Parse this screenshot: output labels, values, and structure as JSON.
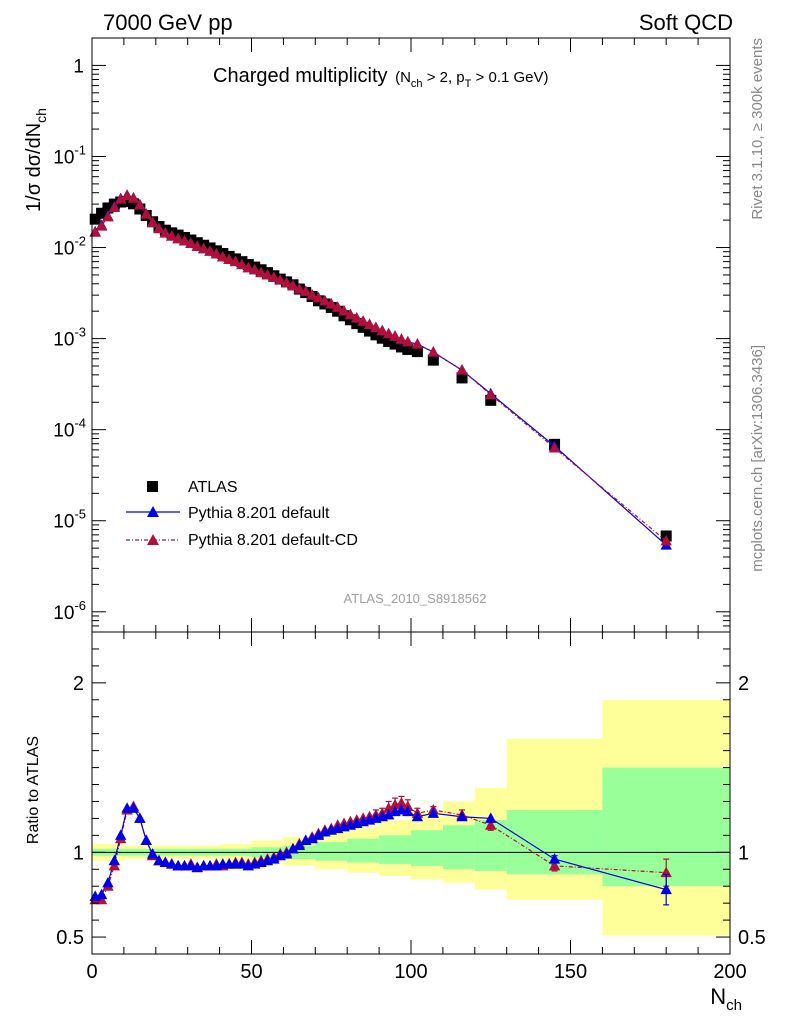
{
  "header": {
    "left": "7000 GeV pp",
    "right": "Soft QCD"
  },
  "side": {
    "rivet": "Rivet 3.1.10, ≥ 300k events",
    "mcplots": "mcplots.cern.ch [arXiv:1306.3436]"
  },
  "colors": {
    "atlas": "#000000",
    "default": "#0000e6",
    "cd": "#b0103a",
    "band_inner": "#99ff99",
    "band_outer": "#ffff99"
  },
  "chart_data": [
    {
      "type": "scatter",
      "title": "Charged multiplicity",
      "title_suffix": "(N_ch > 2, p_T > 0.1 GeV)",
      "ylabel": "1/σ dσ/dN_ch",
      "xlabel": "N_ch",
      "yscale": "log",
      "xlim": [
        0,
        200
      ],
      "ylim": [
        6e-07,
        2
      ],
      "ytick_labels": [
        "1",
        "10^-1",
        "10^-2",
        "10^-3",
        "10^-4",
        "10^-5",
        "10^-6"
      ],
      "watermark": "ATLAS_2010_S8918562",
      "legend_position": "lower-left",
      "series": [
        {
          "name": "ATLAS",
          "marker": "square",
          "x": [
            1,
            3,
            5,
            7,
            9,
            11,
            13,
            15,
            17,
            19,
            21,
            23,
            25,
            27,
            29,
            31,
            33,
            35,
            37,
            39,
            41,
            43,
            45,
            47,
            49,
            51,
            53,
            55,
            57,
            59,
            61,
            63,
            65,
            67,
            69,
            71,
            73,
            75,
            77,
            79,
            81,
            83,
            85,
            87,
            89,
            91,
            93,
            95,
            97,
            99,
            102,
            107,
            116,
            125,
            145,
            180
          ],
          "y": [
            0.0205,
            0.0238,
            0.0272,
            0.03,
            0.0316,
            0.032,
            0.0302,
            0.0265,
            0.0225,
            0.0192,
            0.017,
            0.0155,
            0.0145,
            0.0137,
            0.0129,
            0.0121,
            0.0113,
            0.0106,
            0.0099,
            0.0092,
            0.0086,
            0.008,
            0.0075,
            0.007,
            0.0065,
            0.0061,
            0.0057,
            0.0053,
            0.0049,
            0.0045,
            0.0042,
            0.0039,
            0.0035,
            0.0032,
            0.0029,
            0.0026,
            0.0024,
            0.0022,
            0.002,
            0.00178,
            0.00161,
            0.00146,
            0.00133,
            0.00121,
            0.0011,
            0.00101,
            0.00093,
            0.00087,
            0.00081,
            0.00076,
            0.00072,
            0.00058,
            0.00037,
            0.00021,
            6.9e-05,
            6.8e-06
          ]
        },
        {
          "name": "Pythia 8.201 default",
          "marker": "triangle",
          "x": [
            1,
            3,
            5,
            7,
            9,
            11,
            13,
            15,
            17,
            19,
            21,
            23,
            25,
            27,
            29,
            31,
            33,
            35,
            37,
            39,
            41,
            43,
            45,
            47,
            49,
            51,
            53,
            55,
            57,
            59,
            61,
            63,
            65,
            67,
            69,
            71,
            73,
            75,
            77,
            79,
            81,
            83,
            85,
            87,
            89,
            91,
            93,
            95,
            97,
            99,
            102,
            107,
            116,
            125,
            145,
            180
          ],
          "y": [
            0.0149,
            0.0175,
            0.022,
            0.028,
            0.0345,
            0.0375,
            0.035,
            0.0295,
            0.0233,
            0.0189,
            0.0162,
            0.0145,
            0.0134,
            0.0125,
            0.0118,
            0.0111,
            0.0103,
            0.0097,
            0.0091,
            0.0085,
            0.0079,
            0.0074,
            0.007,
            0.0065,
            0.006,
            0.0057,
            0.0053,
            0.005,
            0.0047,
            0.0044,
            0.0041,
            0.0038,
            0.0035,
            0.0033,
            0.003,
            0.0028,
            0.0026,
            0.0024,
            0.0022,
            0.00201,
            0.00183,
            0.00168,
            0.00155,
            0.00143,
            0.00132,
            0.00122,
            0.00113,
            0.00106,
            0.00098,
            0.00092,
            0.00087,
            0.00071,
            0.00045,
            0.000248,
            6.6e-05,
            5.4e-06
          ]
        },
        {
          "name": "Pythia 8.201 default-CD",
          "marker": "triangle",
          "x": [
            1,
            3,
            5,
            7,
            9,
            11,
            13,
            15,
            17,
            19,
            21,
            23,
            25,
            27,
            29,
            31,
            33,
            35,
            37,
            39,
            41,
            43,
            45,
            47,
            49,
            51,
            53,
            55,
            57,
            59,
            61,
            63,
            65,
            67,
            69,
            71,
            73,
            75,
            77,
            79,
            81,
            83,
            85,
            87,
            89,
            91,
            93,
            95,
            97,
            99,
            102,
            107,
            116,
            125,
            145,
            180
          ],
          "y": [
            0.0147,
            0.0172,
            0.0217,
            0.0275,
            0.034,
            0.0372,
            0.0348,
            0.0293,
            0.0232,
            0.0188,
            0.0161,
            0.0144,
            0.0133,
            0.0125,
            0.0118,
            0.0111,
            0.0103,
            0.0097,
            0.0091,
            0.0085,
            0.0079,
            0.0074,
            0.007,
            0.0065,
            0.006,
            0.0057,
            0.0053,
            0.005,
            0.0047,
            0.0044,
            0.0041,
            0.0038,
            0.0035,
            0.0033,
            0.003,
            0.0028,
            0.0026,
            0.0024,
            0.0022,
            0.00201,
            0.00183,
            0.00168,
            0.00155,
            0.00143,
            0.00132,
            0.00122,
            0.00113,
            0.00106,
            0.00098,
            0.00092,
            0.00087,
            0.00071,
            0.00045,
            0.000242,
            6.3e-05,
            6e-06
          ]
        }
      ]
    },
    {
      "type": "line",
      "ylabel": "Ratio to ATLAS",
      "xlabel": "N_ch",
      "xlim": [
        0,
        200
      ],
      "ylim": [
        0.4,
        2.3
      ],
      "yticks": [
        0.5,
        1,
        2
      ],
      "xticks": [
        0,
        50,
        100,
        150,
        200
      ],
      "reference": 1,
      "bands": {
        "edges": [
          0,
          10,
          20,
          30,
          40,
          50,
          60,
          70,
          80,
          90,
          100,
          110,
          120,
          130,
          160,
          200
        ],
        "inner_lo": [
          0.98,
          0.98,
          0.98,
          0.98,
          0.98,
          0.97,
          0.96,
          0.95,
          0.94,
          0.93,
          0.92,
          0.9,
          0.89,
          0.87,
          0.8,
          0.8
        ],
        "inner_hi": [
          1.02,
          1.02,
          1.02,
          1.02,
          1.02,
          1.03,
          1.04,
          1.06,
          1.08,
          1.1,
          1.13,
          1.16,
          1.19,
          1.25,
          1.5,
          1.5
        ],
        "outer_lo": [
          0.95,
          0.96,
          0.96,
          0.96,
          0.95,
          0.94,
          0.92,
          0.9,
          0.88,
          0.86,
          0.84,
          0.82,
          0.78,
          0.72,
          0.51,
          0.51
        ],
        "outer_hi": [
          1.05,
          1.04,
          1.04,
          1.04,
          1.05,
          1.07,
          1.09,
          1.12,
          1.15,
          1.19,
          1.24,
          1.3,
          1.38,
          1.67,
          1.9,
          1.9
        ]
      },
      "series": [
        {
          "name": "Pythia 8.201 default",
          "x": [
            1,
            3,
            5,
            7,
            9,
            11,
            13,
            15,
            17,
            19,
            21,
            23,
            25,
            27,
            29,
            31,
            33,
            35,
            37,
            39,
            41,
            43,
            45,
            47,
            49,
            51,
            53,
            55,
            57,
            59,
            61,
            63,
            65,
            67,
            69,
            71,
            73,
            75,
            77,
            79,
            81,
            83,
            85,
            87,
            89,
            91,
            93,
            95,
            97,
            99,
            102,
            107,
            116,
            125,
            145,
            180
          ],
          "y": [
            0.74,
            0.75,
            0.82,
            0.95,
            1.1,
            1.26,
            1.26,
            1.2,
            1.07,
            0.99,
            0.95,
            0.94,
            0.93,
            0.92,
            0.92,
            0.92,
            0.91,
            0.92,
            0.92,
            0.92,
            0.93,
            0.93,
            0.93,
            0.93,
            0.92,
            0.93,
            0.94,
            0.95,
            0.96,
            0.98,
            0.99,
            1.02,
            1.04,
            1.07,
            1.08,
            1.1,
            1.12,
            1.13,
            1.14,
            1.15,
            1.16,
            1.17,
            1.18,
            1.19,
            1.2,
            1.21,
            1.22,
            1.24,
            1.25,
            1.24,
            1.21,
            1.23,
            1.21,
            1.2,
            0.96,
            0.78
          ],
          "err": [
            0,
            0,
            0,
            0,
            0,
            0,
            0,
            0,
            0,
            0,
            0,
            0,
            0,
            0,
            0,
            0,
            0,
            0,
            0,
            0,
            0,
            0,
            0,
            0,
            0,
            0,
            0,
            0,
            0,
            0,
            0,
            0,
            0,
            0,
            0,
            0,
            0,
            0,
            0,
            0,
            0,
            0,
            0,
            0,
            0,
            0,
            0,
            0,
            0,
            0,
            0,
            0,
            0,
            0,
            0.02,
            0.09
          ]
        },
        {
          "name": "Pythia 8.201 default-CD",
          "x": [
            1,
            3,
            5,
            7,
            9,
            11,
            13,
            15,
            17,
            19,
            21,
            23,
            25,
            27,
            29,
            31,
            33,
            35,
            37,
            39,
            41,
            43,
            45,
            47,
            49,
            51,
            53,
            55,
            57,
            59,
            61,
            63,
            65,
            67,
            69,
            71,
            73,
            75,
            77,
            79,
            81,
            83,
            85,
            87,
            89,
            91,
            93,
            95,
            97,
            99,
            102,
            107,
            116,
            125,
            145,
            180
          ],
          "y": [
            0.72,
            0.72,
            0.8,
            0.92,
            1.08,
            1.25,
            1.27,
            1.2,
            1.07,
            0.98,
            0.95,
            0.94,
            0.93,
            0.92,
            0.92,
            0.93,
            0.91,
            0.92,
            0.92,
            0.93,
            0.92,
            0.93,
            0.94,
            0.94,
            0.93,
            0.94,
            0.95,
            0.96,
            0.97,
            0.99,
            1.0,
            1.02,
            1.05,
            1.07,
            1.09,
            1.11,
            1.13,
            1.14,
            1.16,
            1.17,
            1.18,
            1.19,
            1.2,
            1.21,
            1.22,
            1.23,
            1.26,
            1.28,
            1.29,
            1.27,
            1.23,
            1.25,
            1.22,
            1.16,
            0.92,
            0.88
          ],
          "err": [
            0,
            0,
            0,
            0,
            0,
            0,
            0,
            0,
            0,
            0,
            0,
            0,
            0,
            0,
            0,
            0,
            0,
            0,
            0,
            0,
            0,
            0,
            0,
            0,
            0,
            0,
            0,
            0,
            0,
            0,
            0,
            0,
            0,
            0,
            0,
            0,
            0,
            0,
            0,
            0,
            0,
            0,
            0,
            0,
            0.03,
            0.03,
            0.04,
            0.04,
            0.04,
            0.04,
            0.03,
            0.02,
            0.03,
            0.03,
            0.03,
            0.08
          ]
        }
      ]
    }
  ]
}
